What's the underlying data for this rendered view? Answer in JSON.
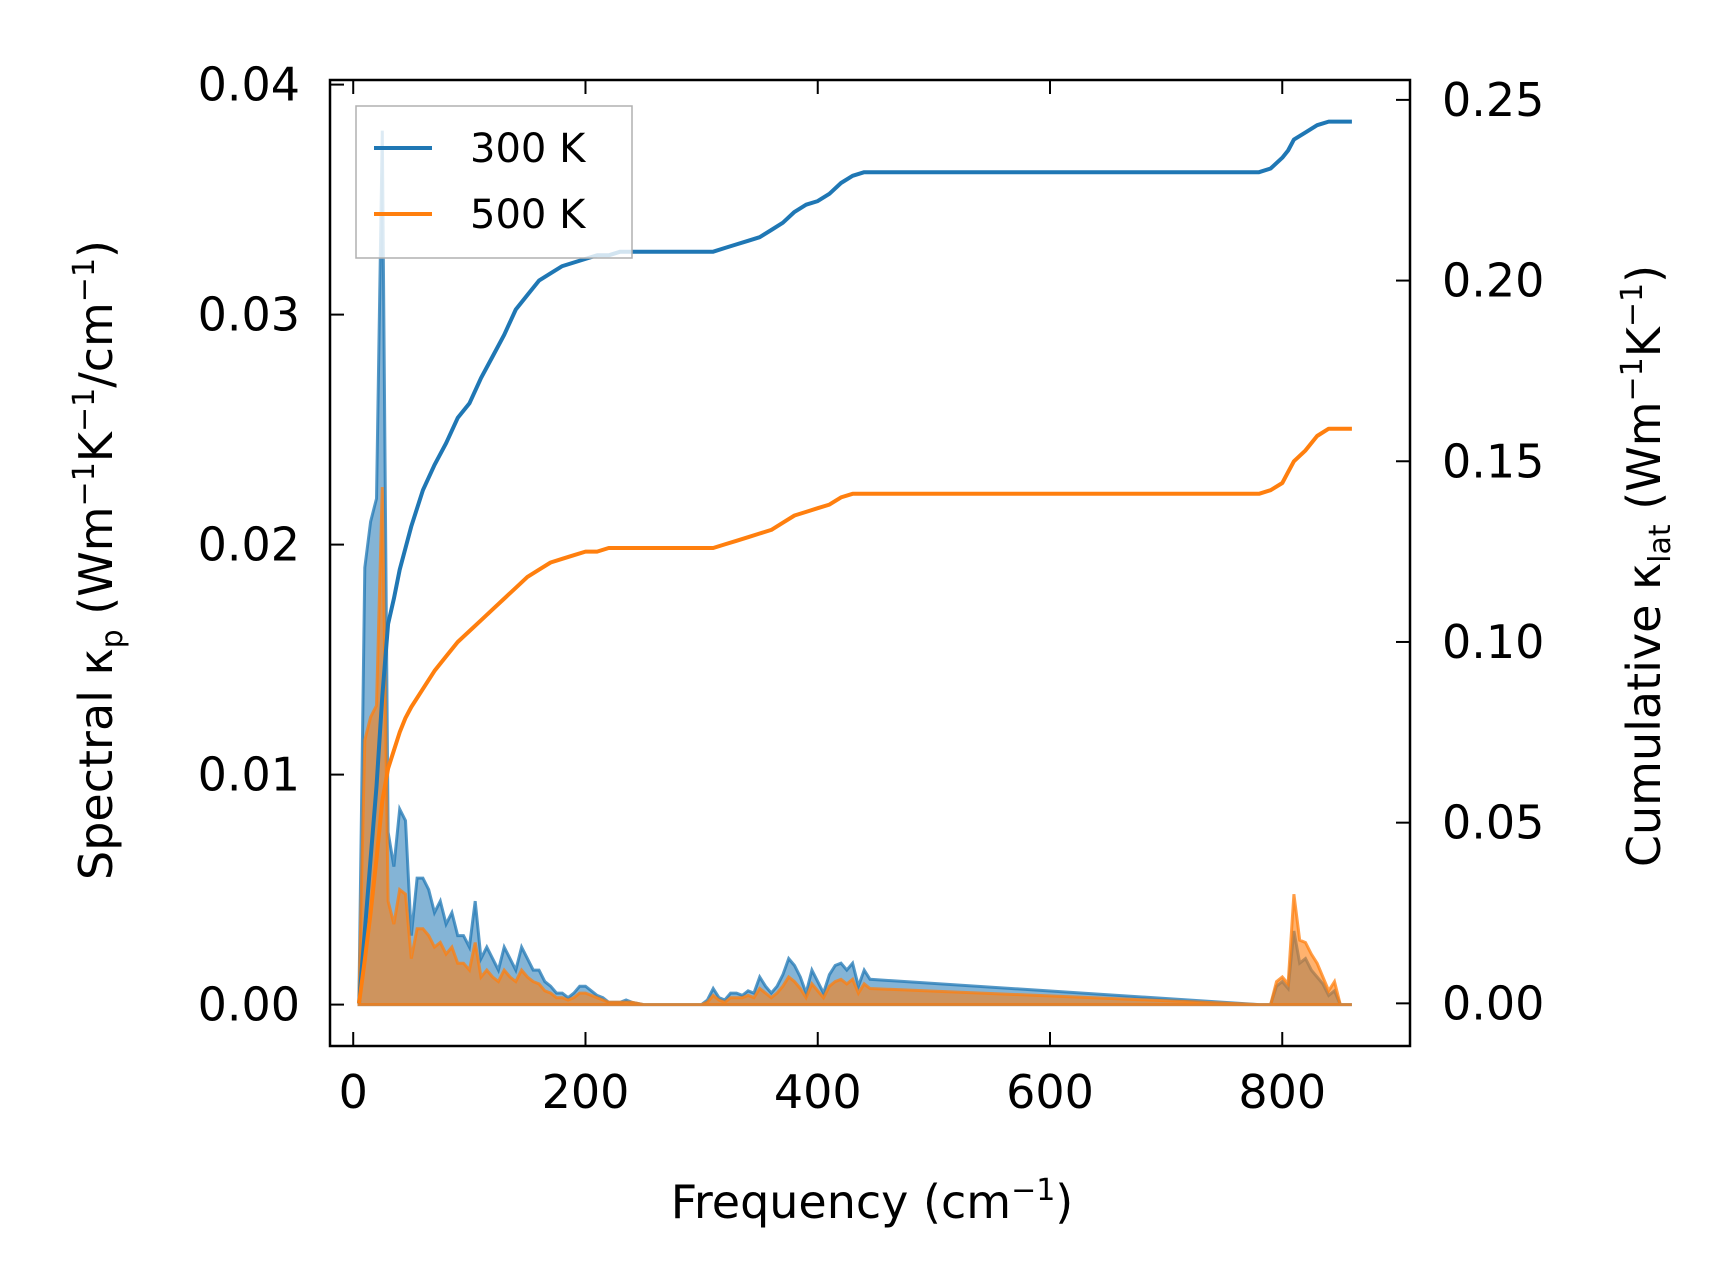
{
  "chart_data": {
    "type": "line",
    "xlabel": "Frequency (cm",
    "xlabel_sup": "−1",
    "xlabel_end": ")",
    "ylabel_left": {
      "prefix": "Spectral κ",
      "sub": "p",
      "mid1": " (Wm",
      "sup1": "−1",
      "mid2": "K",
      "sup2": "−1",
      "mid3": "/cm",
      "sup3": "−1",
      "end": ")"
    },
    "ylabel_right": {
      "prefix": "Cumulative κ",
      "sub": "lat",
      "mid1": " (Wm",
      "sup1": "−1",
      "mid2": "K",
      "sup2": "−1",
      "end": ")"
    },
    "xlim": [
      -20,
      910
    ],
    "ylim_left": [
      -0.0018,
      0.0402
    ],
    "ylim_right": [
      -0.0118,
      0.2555
    ],
    "xticks": [
      0,
      200,
      400,
      600,
      800
    ],
    "yticks_left": [
      0.0,
      0.01,
      0.02,
      0.03,
      0.04
    ],
    "yticks_left_labels": [
      "0.00",
      "0.01",
      "0.02",
      "0.03",
      "0.04"
    ],
    "yticks_right": [
      0.0,
      0.05,
      0.1,
      0.15,
      0.2,
      0.25
    ],
    "yticks_right_labels": [
      "0.00",
      "0.05",
      "0.10",
      "0.15",
      "0.20",
      "0.25"
    ],
    "legend": {
      "position": "top-left",
      "entries": [
        "300 K",
        "500 K"
      ]
    },
    "colors": {
      "s300": "#1f77b4",
      "s500": "#ff7f0e",
      "fill_overlap": "#c49a6c"
    },
    "series": [
      {
        "name": "300 K",
        "color": "#1f77b4",
        "spectral": {
          "x": [
            5,
            10,
            15,
            20,
            25,
            30,
            35,
            40,
            45,
            50,
            55,
            60,
            65,
            70,
            75,
            80,
            85,
            90,
            95,
            100,
            105,
            110,
            115,
            120,
            125,
            130,
            135,
            140,
            145,
            150,
            155,
            160,
            165,
            170,
            175,
            180,
            185,
            190,
            195,
            200,
            205,
            210,
            215,
            220,
            225,
            230,
            235,
            240,
            250,
            300,
            305,
            310,
            315,
            320,
            325,
            330,
            335,
            340,
            345,
            350,
            355,
            360,
            365,
            370,
            375,
            380,
            385,
            390,
            395,
            400,
            405,
            410,
            415,
            420,
            425,
            430,
            435,
            440,
            445,
            780,
            790,
            795,
            800,
            805,
            810,
            815,
            820,
            825,
            830,
            835,
            840,
            845,
            850,
            860
          ],
          "y": [
            0.0005,
            0.019,
            0.021,
            0.022,
            0.038,
            0.0075,
            0.006,
            0.0085,
            0.008,
            0.003,
            0.0055,
            0.0055,
            0.005,
            0.004,
            0.0045,
            0.0035,
            0.004,
            0.003,
            0.003,
            0.0025,
            0.0045,
            0.002,
            0.0025,
            0.002,
            0.0015,
            0.0025,
            0.002,
            0.0015,
            0.0025,
            0.002,
            0.0015,
            0.0015,
            0.001,
            0.0008,
            0.0005,
            0.0005,
            0.0003,
            0.0005,
            0.0008,
            0.0008,
            0.0006,
            0.0004,
            0.0003,
            0.0001,
            0.0001,
            0.0001,
            0.0002,
            0.0001,
            0,
            0,
            0.0002,
            0.0007,
            0.0003,
            0.0002,
            0.0005,
            0.0005,
            0.0004,
            0.0006,
            0.0005,
            0.0012,
            0.0008,
            0.0005,
            0.0008,
            0.0013,
            0.002,
            0.0017,
            0.0012,
            0.0005,
            0.0015,
            0.001,
            0.0005,
            0.0013,
            0.0017,
            0.0018,
            0.0015,
            0.0018,
            0.0008,
            0.0015,
            0.0011,
            0,
            0,
            0.0008,
            0.001,
            0.0007,
            0.0032,
            0.0018,
            0.002,
            0.0015,
            0.0012,
            0.0009,
            0.0004,
            0.0006,
            0,
            0
          ],
          "lower": [
            0,
            0,
            0,
            0,
            0,
            0,
            0,
            0,
            0,
            0,
            0,
            0,
            0,
            0,
            0,
            0,
            0,
            0,
            0,
            0,
            0,
            0,
            0,
            0,
            0,
            0,
            0,
            0,
            0,
            0,
            0,
            0,
            0,
            0,
            0,
            0,
            0,
            0,
            0,
            0,
            0,
            0,
            0,
            0,
            0,
            0,
            0,
            0,
            0,
            0,
            0,
            0,
            0,
            0,
            0,
            0,
            0,
            0,
            0,
            0,
            0,
            0,
            0,
            0,
            0,
            0,
            0,
            0,
            0,
            0,
            0,
            0,
            0,
            0,
            0,
            0,
            0,
            0,
            0,
            0,
            0,
            0,
            0,
            0,
            0,
            0,
            0,
            0,
            0,
            0,
            0,
            0,
            0,
            0
          ]
        },
        "cumulative": {
          "x": [
            5,
            10,
            15,
            20,
            25,
            30,
            35,
            40,
            45,
            50,
            60,
            70,
            80,
            90,
            100,
            110,
            120,
            130,
            140,
            150,
            160,
            170,
            180,
            190,
            200,
            210,
            220,
            230,
            240,
            300,
            310,
            320,
            330,
            340,
            350,
            360,
            370,
            380,
            390,
            400,
            410,
            420,
            430,
            440,
            780,
            790,
            800,
            805,
            810,
            820,
            830,
            840,
            850,
            860
          ],
          "y": [
            0.0,
            0.02,
            0.04,
            0.06,
            0.085,
            0.105,
            0.112,
            0.12,
            0.126,
            0.132,
            0.142,
            0.149,
            0.155,
            0.162,
            0.166,
            0.173,
            0.179,
            0.185,
            0.192,
            0.196,
            0.2,
            0.202,
            0.204,
            0.205,
            0.206,
            0.207,
            0.207,
            0.208,
            0.208,
            0.208,
            0.208,
            0.209,
            0.21,
            0.211,
            0.212,
            0.214,
            0.216,
            0.219,
            0.221,
            0.222,
            0.224,
            0.227,
            0.229,
            0.23,
            0.23,
            0.231,
            0.234,
            0.236,
            0.239,
            0.241,
            0.243,
            0.244,
            0.244,
            0.244
          ]
        }
      },
      {
        "name": "500 K",
        "color": "#ff7f0e",
        "spectral": {
          "x": [
            5,
            10,
            15,
            20,
            25,
            30,
            35,
            40,
            45,
            50,
            55,
            60,
            65,
            70,
            75,
            80,
            85,
            90,
            95,
            100,
            105,
            110,
            115,
            120,
            125,
            130,
            135,
            140,
            145,
            150,
            155,
            160,
            165,
            170,
            175,
            180,
            185,
            190,
            195,
            200,
            205,
            210,
            215,
            220,
            225,
            230,
            235,
            240,
            250,
            300,
            305,
            310,
            315,
            320,
            325,
            330,
            335,
            340,
            345,
            350,
            355,
            360,
            365,
            370,
            375,
            380,
            385,
            390,
            395,
            400,
            405,
            410,
            415,
            420,
            425,
            430,
            435,
            440,
            445,
            780,
            790,
            795,
            800,
            805,
            810,
            815,
            820,
            825,
            830,
            835,
            840,
            845,
            850,
            860
          ],
          "y": [
            0.0003,
            0.0115,
            0.0125,
            0.013,
            0.0225,
            0.0045,
            0.0035,
            0.005,
            0.0048,
            0.002,
            0.0033,
            0.0033,
            0.003,
            0.0025,
            0.0027,
            0.0022,
            0.0025,
            0.0018,
            0.0018,
            0.0015,
            0.0027,
            0.0012,
            0.0015,
            0.0012,
            0.001,
            0.0015,
            0.0012,
            0.001,
            0.0015,
            0.0012,
            0.001,
            0.0009,
            0.0006,
            0.0005,
            0.0003,
            0.0003,
            0.0002,
            0.0003,
            0.0005,
            0.0005,
            0.0004,
            0.0003,
            0.0002,
            0.0001,
            0.0001,
            0.0001,
            0.0001,
            0.0001,
            0,
            0,
            0.0001,
            0.0004,
            0.0002,
            0.0001,
            0.0003,
            0.0003,
            0.0003,
            0.0004,
            0.0003,
            0.0007,
            0.0005,
            0.0003,
            0.0005,
            0.0008,
            0.0012,
            0.001,
            0.0007,
            0.0003,
            0.0009,
            0.0006,
            0.0003,
            0.0008,
            0.001,
            0.0011,
            0.0009,
            0.0011,
            0.0005,
            0.0009,
            0.0007,
            0,
            0,
            0.001,
            0.0012,
            0.0009,
            0.0048,
            0.0028,
            0.0027,
            0.0022,
            0.0018,
            0.0012,
            0.0006,
            0.001,
            0,
            0
          ],
          "lower": [
            0,
            0,
            0,
            0,
            0,
            0,
            0,
            0,
            0,
            0,
            0,
            0,
            0,
            0,
            0,
            0,
            0,
            0,
            0,
            0,
            0,
            0,
            0,
            0,
            0,
            0,
            0,
            0,
            0,
            0,
            0,
            0,
            0,
            0,
            0,
            0,
            0,
            0,
            0,
            0,
            0,
            0,
            0,
            0,
            0,
            0,
            0,
            0,
            0,
            0,
            0,
            0,
            0,
            0,
            0,
            0,
            0,
            0,
            0,
            0,
            0,
            0,
            0,
            0,
            0,
            0,
            0,
            0,
            0,
            0,
            0,
            0,
            0,
            0,
            0,
            0,
            0,
            0,
            0,
            0,
            0,
            0,
            0,
            0,
            0,
            0,
            0,
            0,
            0,
            0,
            0,
            0,
            0,
            0
          ]
        },
        "cumulative": {
          "x": [
            5,
            10,
            15,
            20,
            25,
            30,
            35,
            40,
            45,
            50,
            60,
            70,
            80,
            90,
            100,
            110,
            120,
            130,
            140,
            150,
            160,
            170,
            180,
            190,
            200,
            210,
            220,
            230,
            240,
            300,
            310,
            320,
            330,
            340,
            350,
            360,
            370,
            380,
            390,
            400,
            410,
            420,
            430,
            440,
            780,
            790,
            800,
            805,
            810,
            820,
            830,
            840,
            850,
            860
          ],
          "y": [
            0.0,
            0.012,
            0.025,
            0.04,
            0.056,
            0.065,
            0.07,
            0.075,
            0.079,
            0.082,
            0.087,
            0.092,
            0.096,
            0.1,
            0.103,
            0.106,
            0.109,
            0.112,
            0.115,
            0.118,
            0.12,
            0.122,
            0.123,
            0.124,
            0.125,
            0.125,
            0.126,
            0.126,
            0.126,
            0.126,
            0.126,
            0.127,
            0.128,
            0.129,
            0.13,
            0.131,
            0.133,
            0.135,
            0.136,
            0.137,
            0.138,
            0.14,
            0.141,
            0.141,
            0.141,
            0.142,
            0.144,
            0.147,
            0.15,
            0.153,
            0.157,
            0.159,
            0.159,
            0.159
          ]
        }
      }
    ]
  }
}
